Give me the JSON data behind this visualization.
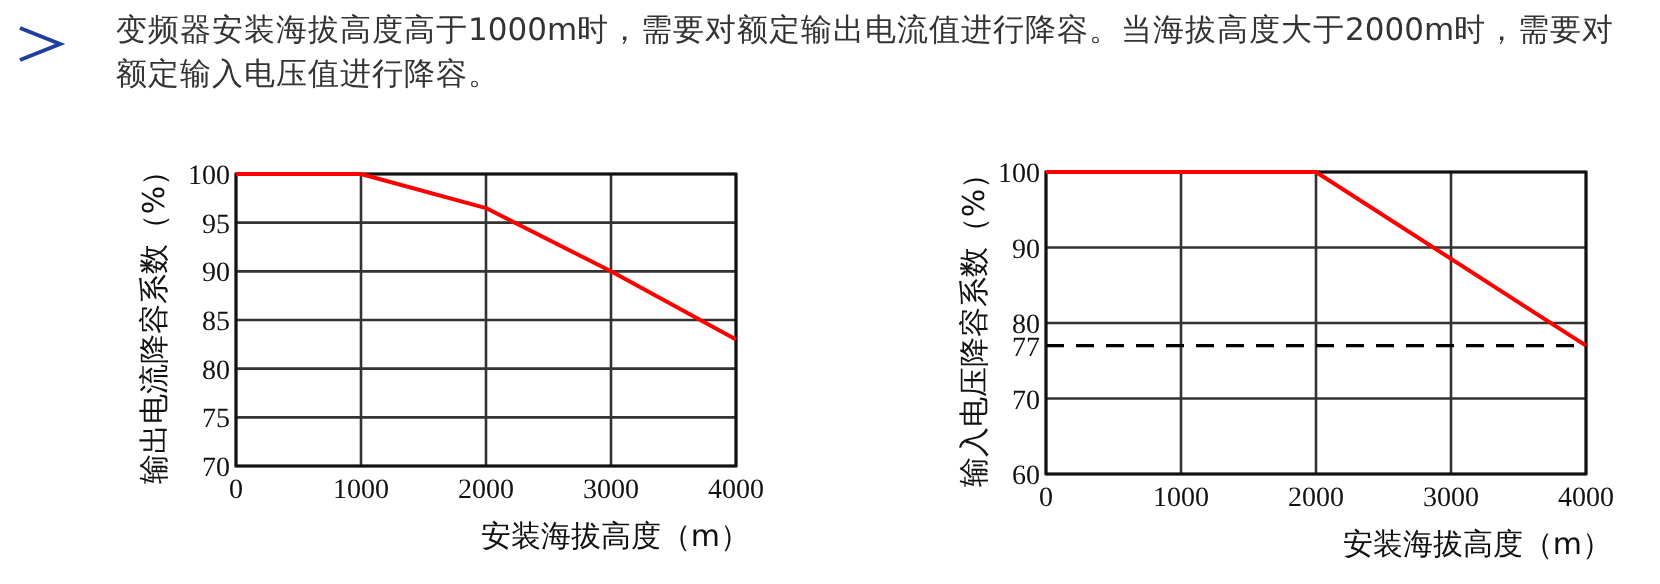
{
  "chart_data": [
    {
      "type": "line",
      "title": "变频器安装海拔高度高于1000m时，需要对额定输出电流值进行降容。当海拔高度大于2000m时，需要对额定输入电压值进行降容。",
      "xlabel": "安装海拔高度（m）",
      "ylabel": "输出电流降容系数（%）",
      "x": [
        0,
        1000,
        2000,
        3000,
        4000
      ],
      "series": [
        {
          "color": "#ff0000",
          "values": [
            100,
            100,
            96.5,
            90,
            83
          ]
        }
      ],
      "xlim": [
        0,
        4000
      ],
      "ylim": [
        70,
        100
      ],
      "xticks": [
        0,
        1000,
        2000,
        3000,
        4000
      ],
      "yticks": [
        70,
        75,
        80,
        85,
        90,
        95,
        100
      ],
      "grid": true
    },
    {
      "type": "line",
      "xlabel": "安装海拔高度（m）",
      "ylabel": "输入电压降容系数（%）",
      "x": [
        0,
        2000,
        4000
      ],
      "series": [
        {
          "color": "#ff0000",
          "values": [
            100,
            100,
            77
          ]
        }
      ],
      "xlim": [
        0,
        4000
      ],
      "ylim": [
        60,
        100
      ],
      "xticks": [
        0,
        1000,
        2000,
        3000,
        4000
      ],
      "yticks": [
        60,
        70,
        77,
        80,
        90,
        100
      ],
      "grid": true,
      "ref_lines": [
        {
          "axis": "y",
          "value": 77,
          "color": "#000000",
          "line_style": "dashed"
        }
      ]
    }
  ]
}
